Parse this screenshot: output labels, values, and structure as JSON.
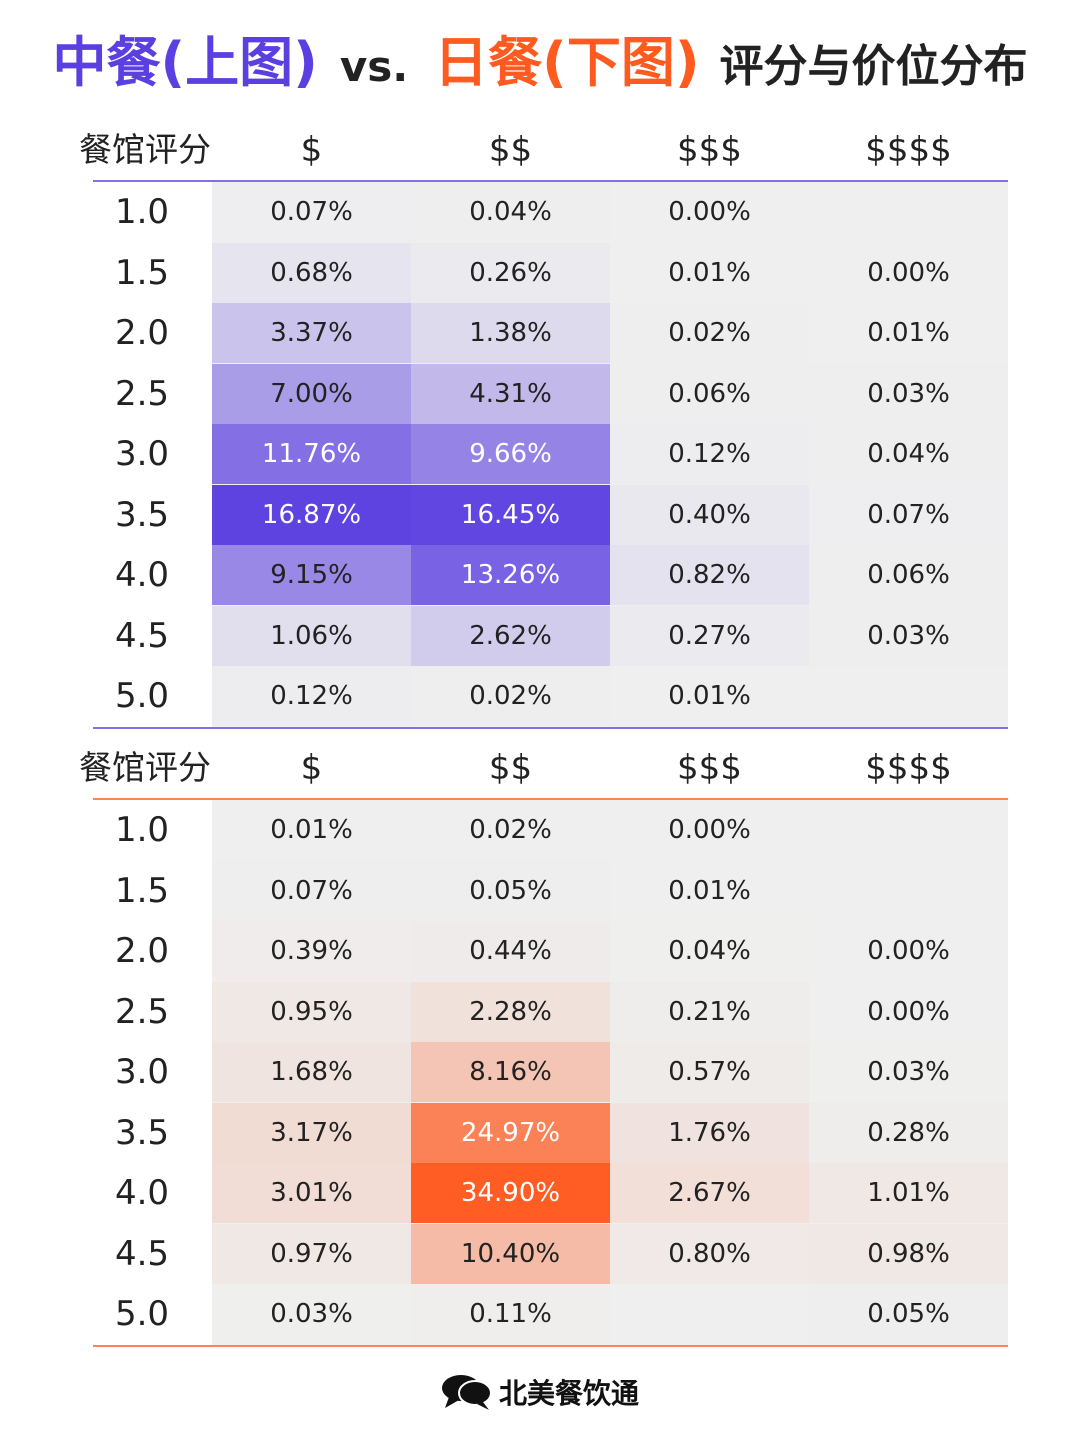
{
  "title": {
    "cn": "中餐(上图)",
    "vs": "vs.",
    "jp": "日餐(下图)",
    "rest": "评分与价位分布"
  },
  "colors": {
    "chinese_accent": "#5b3fe0",
    "japanese_accent": "#ff5a1f",
    "empty_cell": "#efefef"
  },
  "chart_data": [
    {
      "type": "heatmap",
      "name": "中餐",
      "row_header": "餐馆评分",
      "columns": [
        "$",
        "$$",
        "$$$",
        "$$$$"
      ],
      "rows": [
        "1.0",
        "1.5",
        "2.0",
        "2.5",
        "3.0",
        "3.5",
        "4.0",
        "4.5",
        "5.0"
      ],
      "values": [
        [
          "0.07%",
          "0.04%",
          "0.00%",
          ""
        ],
        [
          "0.68%",
          "0.26%",
          "0.01%",
          "0.00%"
        ],
        [
          "3.37%",
          "1.38%",
          "0.02%",
          "0.01%"
        ],
        [
          "7.00%",
          "4.31%",
          "0.06%",
          "0.03%"
        ],
        [
          "11.76%",
          "9.66%",
          "0.12%",
          "0.04%"
        ],
        [
          "16.87%",
          "16.45%",
          "0.40%",
          "0.07%"
        ],
        [
          "9.15%",
          "13.26%",
          "0.82%",
          "0.06%"
        ],
        [
          "1.06%",
          "2.62%",
          "0.27%",
          "0.03%"
        ],
        [
          "0.12%",
          "0.02%",
          "0.01%",
          ""
        ]
      ],
      "color": "#5b3fe0"
    },
    {
      "type": "heatmap",
      "name": "日餐",
      "row_header": "餐馆评分",
      "columns": [
        "$",
        "$$",
        "$$$",
        "$$$$"
      ],
      "rows": [
        "1.0",
        "1.5",
        "2.0",
        "2.5",
        "3.0",
        "3.5",
        "4.0",
        "4.5",
        "5.0"
      ],
      "values": [
        [
          "0.01%",
          "0.02%",
          "0.00%",
          ""
        ],
        [
          "0.07%",
          "0.05%",
          "0.01%",
          ""
        ],
        [
          "0.39%",
          "0.44%",
          "0.04%",
          "0.00%"
        ],
        [
          "0.95%",
          "2.28%",
          "0.21%",
          "0.00%"
        ],
        [
          "1.68%",
          "8.16%",
          "0.57%",
          "0.03%"
        ],
        [
          "3.17%",
          "24.97%",
          "1.76%",
          "0.28%"
        ],
        [
          "3.01%",
          "34.90%",
          "2.67%",
          "1.01%"
        ],
        [
          "0.97%",
          "10.40%",
          "0.80%",
          "0.98%"
        ],
        [
          "0.03%",
          "0.11%",
          "",
          "0.05%"
        ]
      ],
      "color": "#ff5a1f"
    }
  ],
  "brand": {
    "name": "北美餐饮通",
    "icon": "chat-bubbles-icon"
  }
}
